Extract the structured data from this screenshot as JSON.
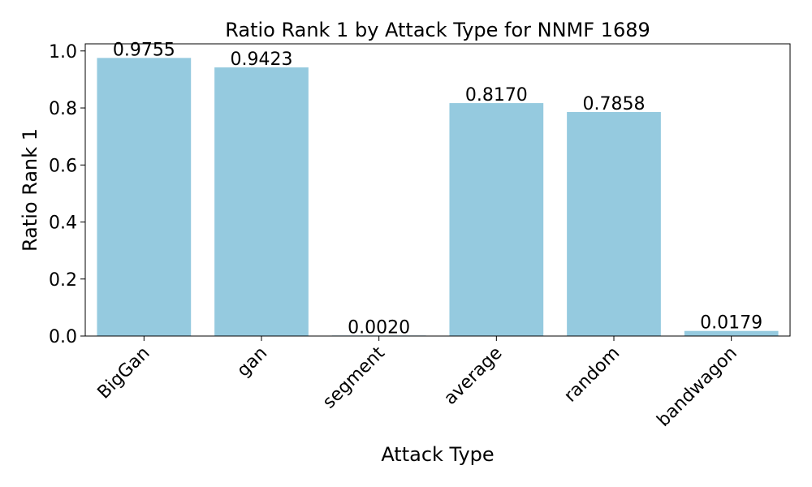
{
  "chart_data": {
    "type": "bar",
    "title": "Ratio Rank 1 by Attack Type for NNMF 1689",
    "xlabel": "Attack Type",
    "ylabel": "Ratio Rank 1",
    "categories": [
      "BigGan",
      "gan",
      "segment",
      "average",
      "random",
      "bandwagon"
    ],
    "values": [
      0.9755,
      0.9423,
      0.002,
      0.817,
      0.7858,
      0.0179
    ],
    "data_labels": [
      "0.9755",
      "0.9423",
      "0.0020",
      "0.8170",
      "0.7858",
      "0.0179"
    ],
    "ylim": [
      0,
      1.025
    ],
    "yticks": [
      "0.0",
      "0.2",
      "0.4",
      "0.6",
      "0.8",
      "1.0"
    ],
    "ytick_values": [
      0,
      0.2,
      0.4,
      0.6,
      0.8,
      1.0
    ],
    "bar_color": "#95cadf",
    "grid": false,
    "legend": "none"
  }
}
